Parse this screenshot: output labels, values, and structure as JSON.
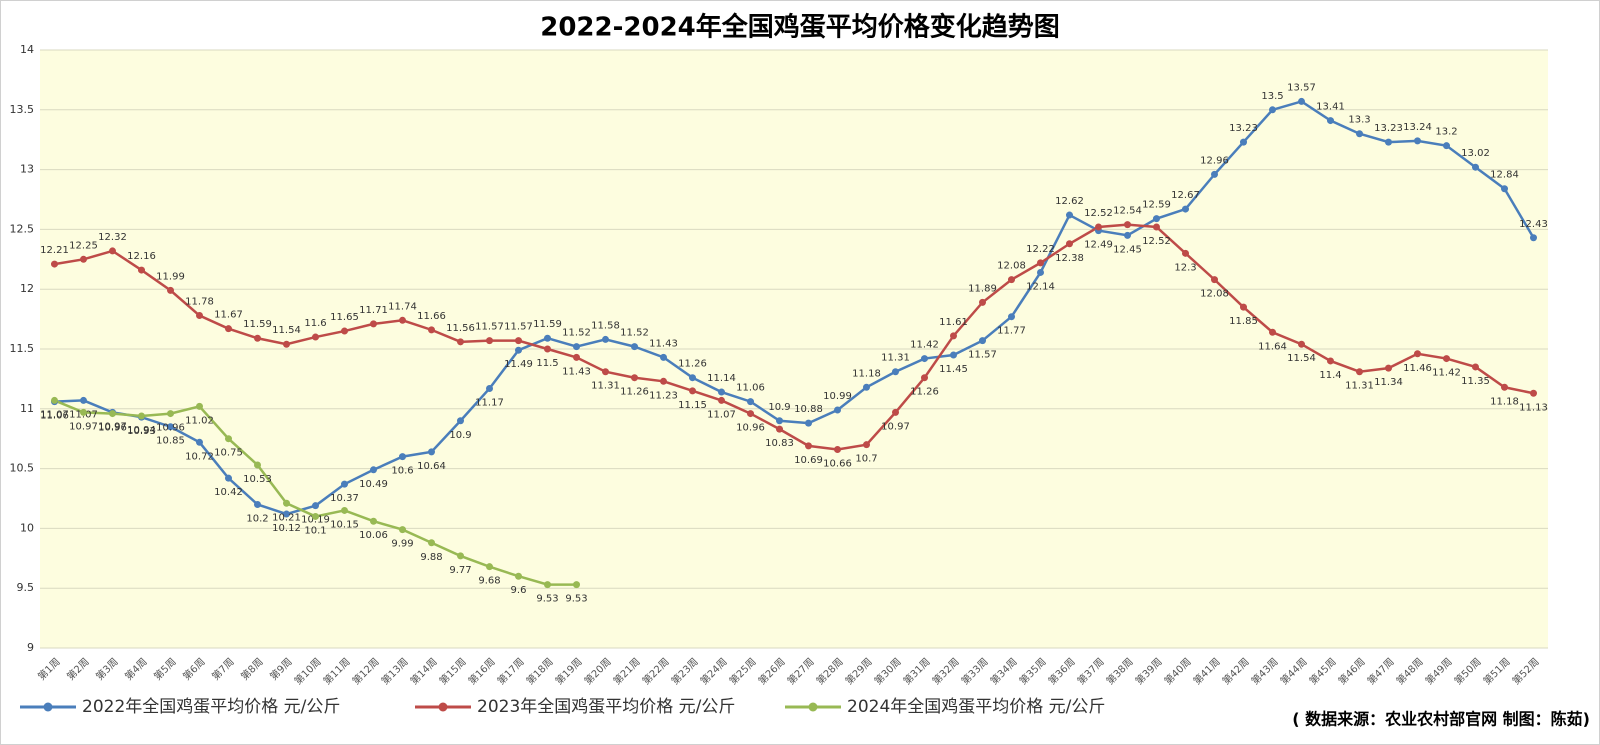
{
  "chart_data": {
    "type": "line",
    "title": "2022-2024年全国鸡蛋平均价格变化趋势图",
    "source": "( 数据来源：农业农村部官网 制图：陈茹)",
    "categories": [
      "第1周",
      "第2周",
      "第3周",
      "第4周",
      "第5周",
      "第6周",
      "第7周",
      "第8周",
      "第9周",
      "第10周",
      "第11周",
      "第12周",
      "第13周",
      "第14周",
      "第15周",
      "第16周",
      "第17周",
      "第18周",
      "第19周",
      "第20周",
      "第21周",
      "第22周",
      "第23周",
      "第24周",
      "第25周",
      "第26周",
      "第27周",
      "第28周",
      "第29周",
      "第30周",
      "第31周",
      "第32周",
      "第33周",
      "第34周",
      "第35周",
      "第36周",
      "第37周",
      "第38周",
      "第39周",
      "第40周",
      "第41周",
      "第42周",
      "第43周",
      "第44周",
      "第45周",
      "第46周",
      "第47周",
      "第48周",
      "第49周",
      "第50周",
      "第51周",
      "第52周"
    ],
    "series": [
      {
        "name": "2022年全国鸡蛋平均价格 元/公斤",
        "color": "#4a7ebb",
        "values": [
          11.06,
          11.07,
          10.97,
          10.93,
          10.85,
          10.72,
          10.42,
          10.2,
          10.12,
          10.19,
          10.37,
          10.49,
          10.6,
          10.64,
          10.9,
          11.17,
          11.49,
          11.59,
          11.52,
          11.58,
          11.52,
          11.43,
          11.26,
          11.14,
          11.06,
          10.9,
          10.88,
          10.99,
          11.18,
          11.31,
          11.42,
          11.45,
          11.57,
          11.77,
          12.14,
          12.62,
          12.49,
          12.45,
          12.59,
          12.67,
          12.96,
          13.23,
          13.5,
          13.57,
          13.41,
          13.3,
          13.23,
          13.24,
          13.2,
          13.02,
          12.84,
          12.43
        ]
      },
      {
        "name": "2023年全国鸡蛋平均价格 元/公斤",
        "color": "#be4b48",
        "values": [
          12.21,
          12.25,
          12.32,
          12.16,
          11.99,
          11.78,
          11.67,
          11.59,
          11.54,
          11.6,
          11.65,
          11.71,
          11.74,
          11.66,
          11.56,
          11.57,
          11.57,
          11.5,
          11.43,
          11.31,
          11.26,
          11.23,
          11.15,
          11.07,
          10.96,
          10.83,
          10.69,
          10.66,
          10.7,
          10.97,
          11.26,
          11.61,
          11.89,
          12.08,
          12.22,
          12.38,
          12.52,
          12.54,
          12.52,
          12.3,
          12.08,
          11.85,
          11.64,
          11.54,
          11.4,
          11.31,
          11.34,
          11.46,
          11.42,
          11.35,
          11.18,
          11.13
        ]
      },
      {
        "name": "2024年全国鸡蛋平均价格 元/公斤",
        "color": "#98b954",
        "values": [
          11.07,
          10.97,
          10.96,
          10.94,
          10.96,
          11.02,
          10.75,
          10.53,
          10.21,
          10.1,
          10.15,
          10.06,
          9.99,
          9.88,
          9.77,
          9.68,
          9.6,
          9.53,
          9.53,
          null,
          null,
          null,
          null,
          null,
          null,
          null,
          null,
          null,
          null,
          null,
          null,
          null,
          null,
          null,
          null,
          null,
          null,
          null,
          null,
          null,
          null,
          null,
          null,
          null,
          null,
          null,
          null,
          null,
          null,
          null,
          null,
          null
        ]
      }
    ],
    "ylim": [
      9,
      14
    ],
    "yticks": [
      9,
      9.5,
      10,
      10.5,
      11,
      11.5,
      12,
      12.5,
      13,
      13.5,
      14
    ],
    "grid": true
  }
}
